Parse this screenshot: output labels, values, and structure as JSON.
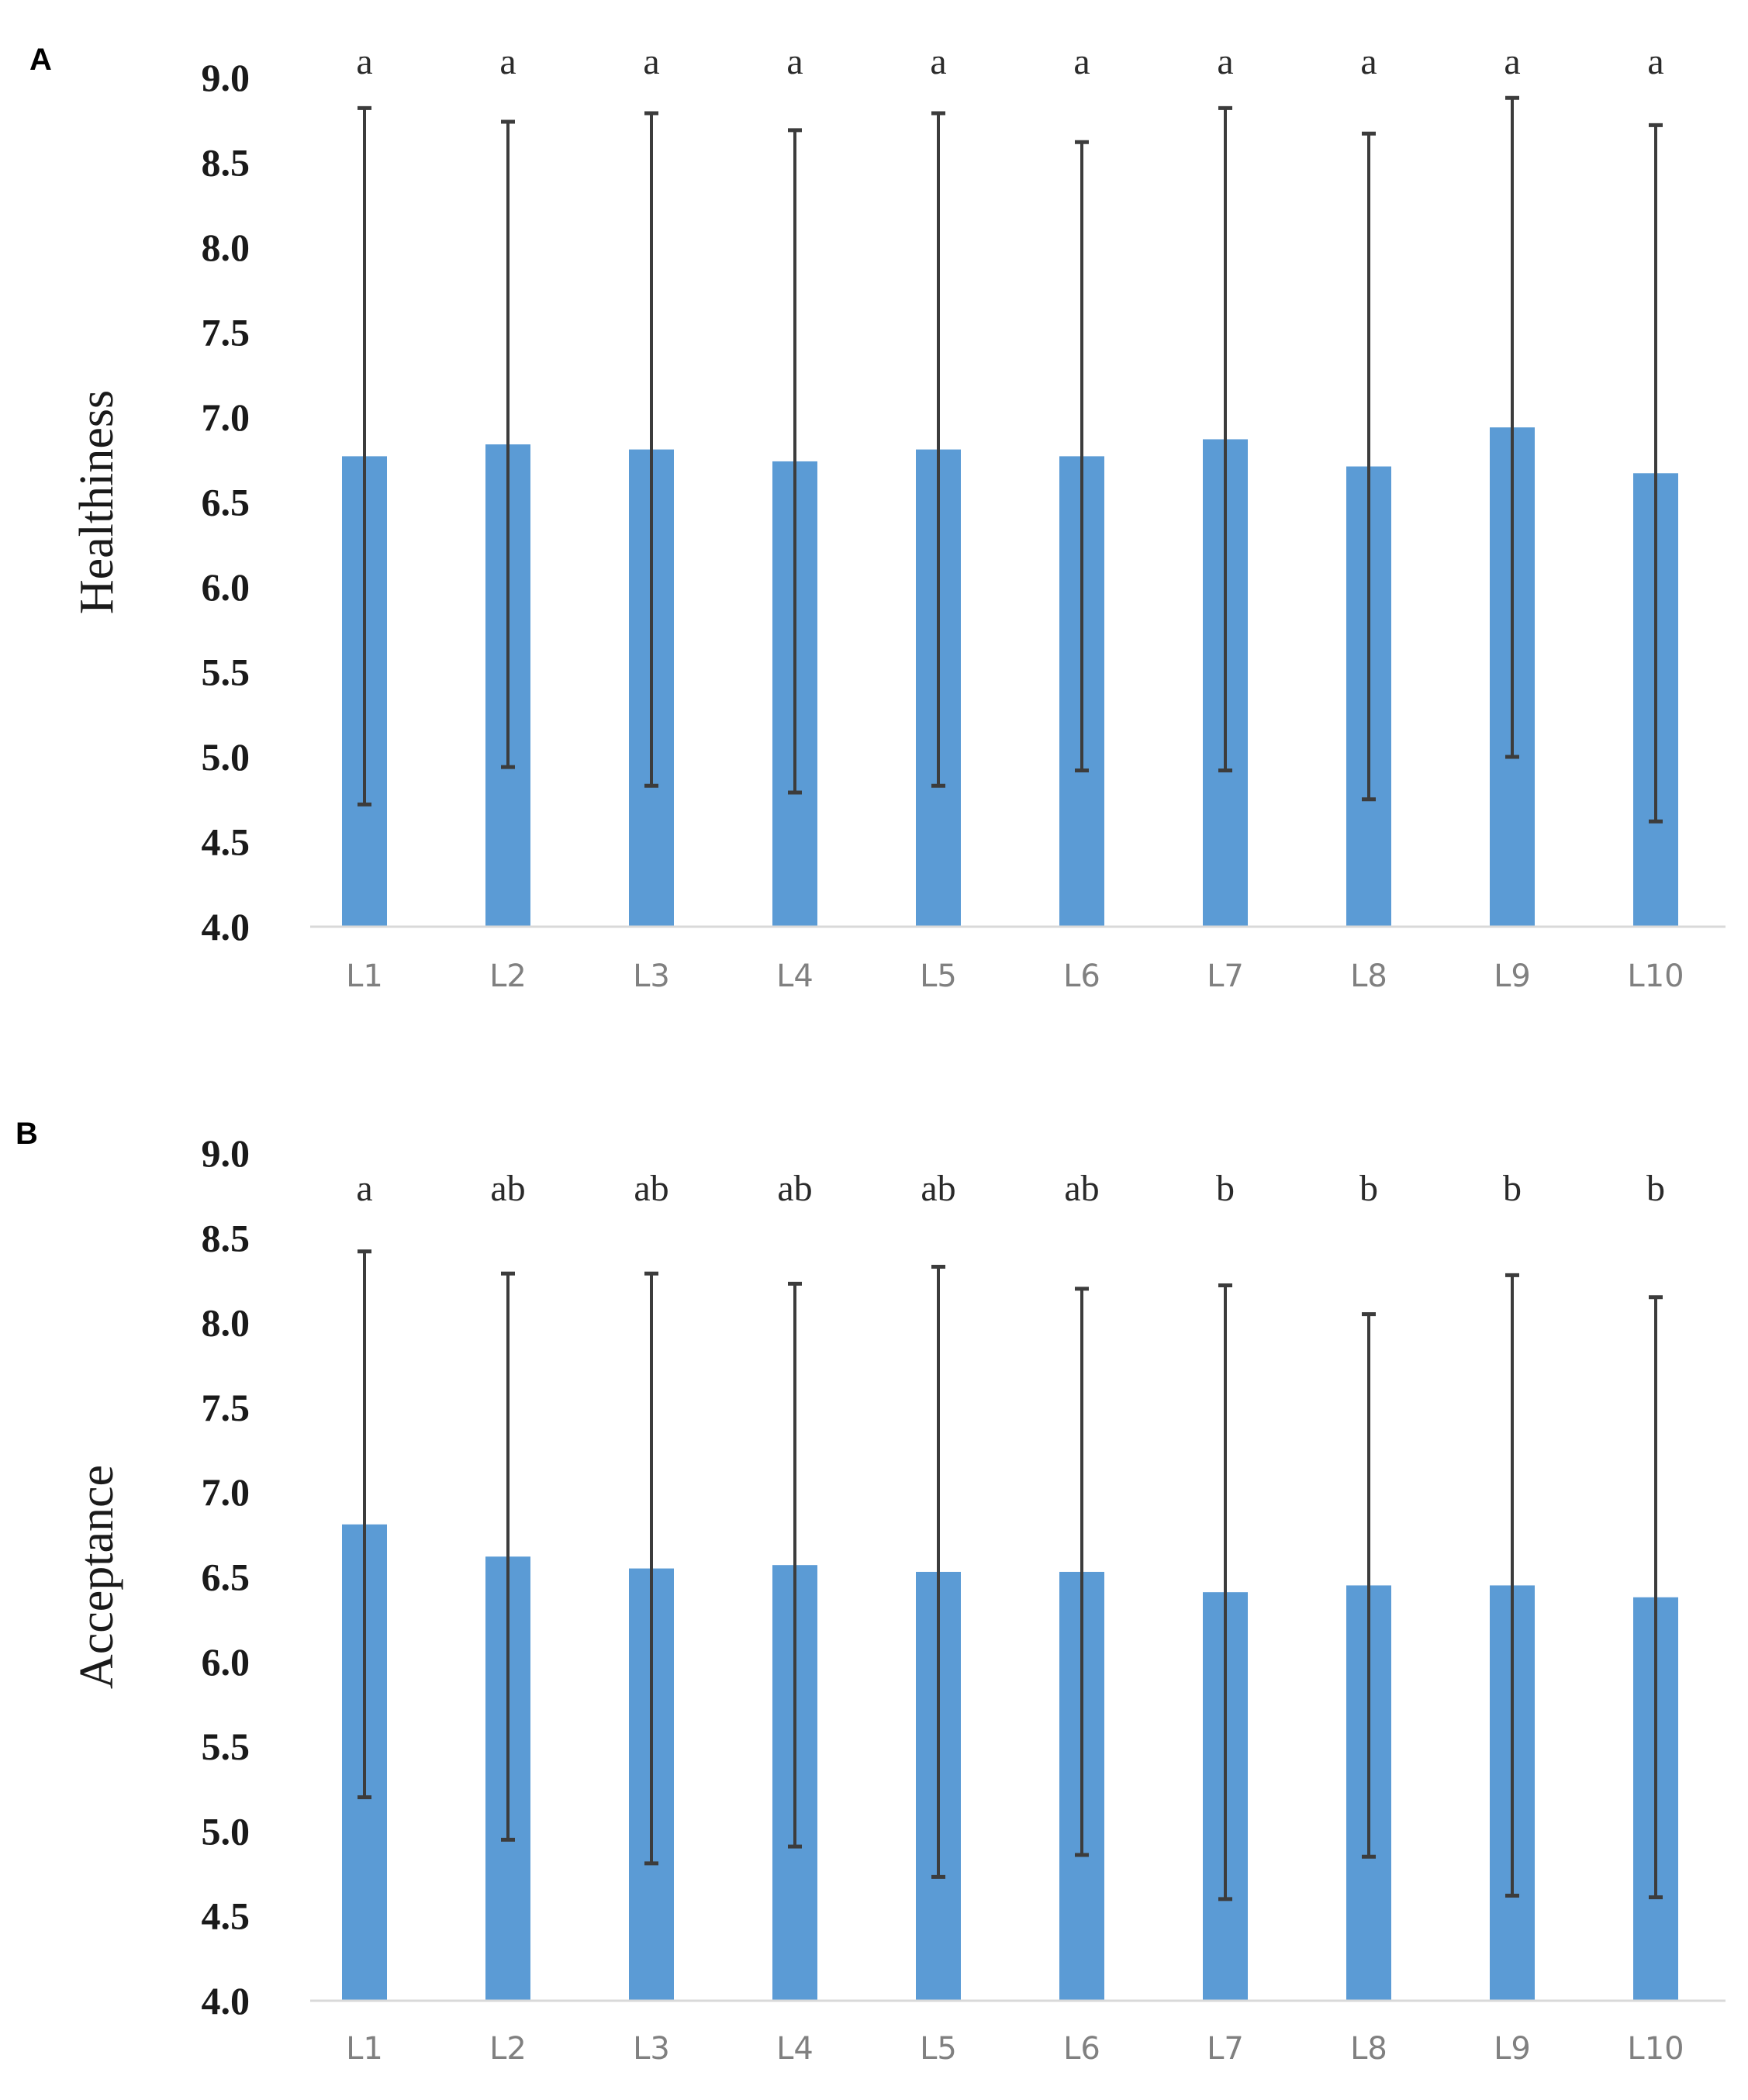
{
  "chart_data": [
    {
      "type": "bar",
      "panel_label": "A",
      "ylabel": "Healthiness",
      "xlabel": "",
      "ylim": [
        4.0,
        9.0
      ],
      "yticks": [
        "4.0",
        "4.5",
        "5.0",
        "5.5",
        "6.0",
        "6.5",
        "7.0",
        "7.5",
        "8.0",
        "8.5",
        "9.0"
      ],
      "categories": [
        "L1",
        "L2",
        "L3",
        "L4",
        "L5",
        "L6",
        "L7",
        "L8",
        "L9",
        "L10"
      ],
      "values": [
        6.77,
        6.84,
        6.81,
        6.74,
        6.81,
        6.77,
        6.87,
        6.71,
        6.94,
        6.67
      ],
      "error": [
        2.05,
        1.9,
        1.98,
        1.95,
        1.98,
        1.85,
        1.95,
        1.96,
        1.94,
        2.05
      ],
      "significance": [
        "a",
        "a",
        "a",
        "a",
        "a",
        "a",
        "a",
        "a",
        "a",
        "a"
      ],
      "bar_color": "#5b9bd5",
      "grid": false,
      "legend": "none"
    },
    {
      "type": "bar",
      "panel_label": "B",
      "ylabel": "Acceptance",
      "xlabel": "",
      "ylim": [
        4.0,
        9.0
      ],
      "yticks": [
        "4.0",
        "4.5",
        "5.0",
        "5.5",
        "6.0",
        "6.5",
        "7.0",
        "7.5",
        "8.0",
        "8.5",
        "9.0"
      ],
      "categories": [
        "L1",
        "L2",
        "L3",
        "L4",
        "L5",
        "L6",
        "L7",
        "L8",
        "L9",
        "L10"
      ],
      "values": [
        6.81,
        6.62,
        6.55,
        6.57,
        6.53,
        6.53,
        6.41,
        6.45,
        6.45,
        6.38
      ],
      "error": [
        1.61,
        1.67,
        1.74,
        1.66,
        1.8,
        1.67,
        1.81,
        1.6,
        1.83,
        1.77
      ],
      "significance": [
        "a",
        "ab",
        "ab",
        "ab",
        "ab",
        "ab",
        "b",
        "b",
        "b",
        "b"
      ],
      "bar_color": "#5b9bd5",
      "grid": false,
      "legend": "none"
    }
  ]
}
